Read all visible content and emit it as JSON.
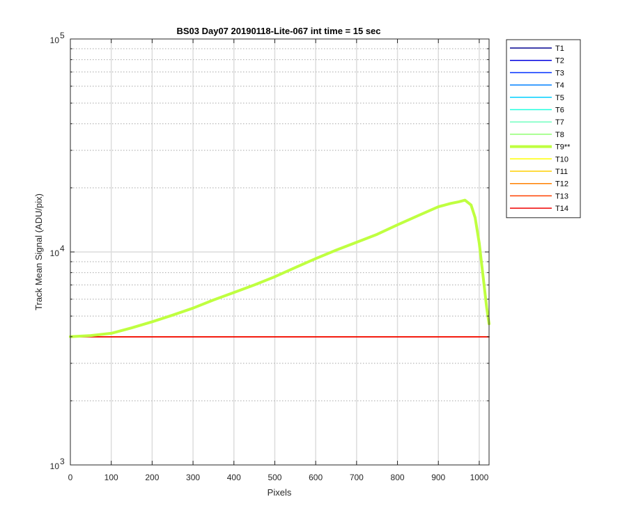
{
  "chart_data": {
    "type": "line",
    "title": "BS03 Day07 20190118-Lite-067 int time = 15 sec",
    "xlabel": "Pixels",
    "ylabel": "Track Mean Signal (ADU/pix)",
    "xlim": [
      0,
      1024
    ],
    "ylim": [
      1000,
      100000
    ],
    "y_scale": "log",
    "grid": true,
    "legend_position": "outside-right",
    "x_ticks": [
      "0",
      "100",
      "200",
      "300",
      "400",
      "500",
      "600",
      "700",
      "800",
      "900",
      "1000"
    ],
    "y_tick_bases": [
      "10",
      "10",
      "10"
    ],
    "y_tick_exponents": [
      "3",
      "4",
      "5"
    ],
    "y_tick_values": [
      1000,
      10000,
      100000
    ],
    "series": [
      {
        "name": "T1",
        "color": "#00008f",
        "width": 1.5,
        "x": [
          0,
          1024
        ],
        "y": [
          4000,
          4000
        ]
      },
      {
        "name": "T2",
        "color": "#0000df",
        "width": 1.5,
        "x": [
          0,
          1024
        ],
        "y": [
          4000,
          4000
        ]
      },
      {
        "name": "T3",
        "color": "#0030ff",
        "width": 1.5,
        "x": [
          0,
          1024
        ],
        "y": [
          4000,
          4000
        ]
      },
      {
        "name": "T4",
        "color": "#0080ff",
        "width": 1.5,
        "x": [
          0,
          1024
        ],
        "y": [
          4000,
          4000
        ]
      },
      {
        "name": "T5",
        "color": "#00cfff",
        "width": 1.5,
        "x": [
          0,
          1024
        ],
        "y": [
          4000,
          4000
        ]
      },
      {
        "name": "T6",
        "color": "#20ffdf",
        "width": 1.5,
        "x": [
          0,
          1024
        ],
        "y": [
          4000,
          4000
        ]
      },
      {
        "name": "T7",
        "color": "#70ffbf",
        "width": 1.5,
        "x": [
          0,
          1024
        ],
        "y": [
          4000,
          4000
        ]
      },
      {
        "name": "T8",
        "color": "#8fff70",
        "width": 1.5,
        "x": [
          0,
          1024
        ],
        "y": [
          4000,
          4000
        ]
      },
      {
        "name": "T9**",
        "color": "#bfff40",
        "width": 4,
        "x": [
          0,
          50,
          100,
          150,
          200,
          250,
          300,
          350,
          400,
          450,
          500,
          550,
          600,
          650,
          700,
          750,
          800,
          850,
          900,
          930,
          950,
          965,
          980,
          990,
          1000,
          1010,
          1018,
          1024
        ],
        "y": [
          4000,
          4050,
          4150,
          4400,
          4700,
          5050,
          5450,
          5950,
          6450,
          7000,
          7650,
          8450,
          9300,
          10200,
          11100,
          12100,
          13400,
          14800,
          16300,
          16900,
          17200,
          17500,
          16600,
          14500,
          11000,
          7500,
          5500,
          4600
        ]
      },
      {
        "name": "T10",
        "color": "#ffff00",
        "width": 1.5,
        "x": [
          0,
          1024
        ],
        "y": [
          4000,
          4000
        ]
      },
      {
        "name": "T11",
        "color": "#ffcf00",
        "width": 1.5,
        "x": [
          0,
          1024
        ],
        "y": [
          4000,
          4000
        ]
      },
      {
        "name": "T12",
        "color": "#ff8000",
        "width": 1.5,
        "x": [
          0,
          1024
        ],
        "y": [
          4000,
          4000
        ]
      },
      {
        "name": "T13",
        "color": "#ff4000",
        "width": 1.5,
        "x": [
          0,
          1024
        ],
        "y": [
          4000,
          4000
        ]
      },
      {
        "name": "T14",
        "color": "#ef0000",
        "width": 1.5,
        "x": [
          0,
          1024
        ],
        "y": [
          3990,
          3990
        ]
      }
    ]
  }
}
